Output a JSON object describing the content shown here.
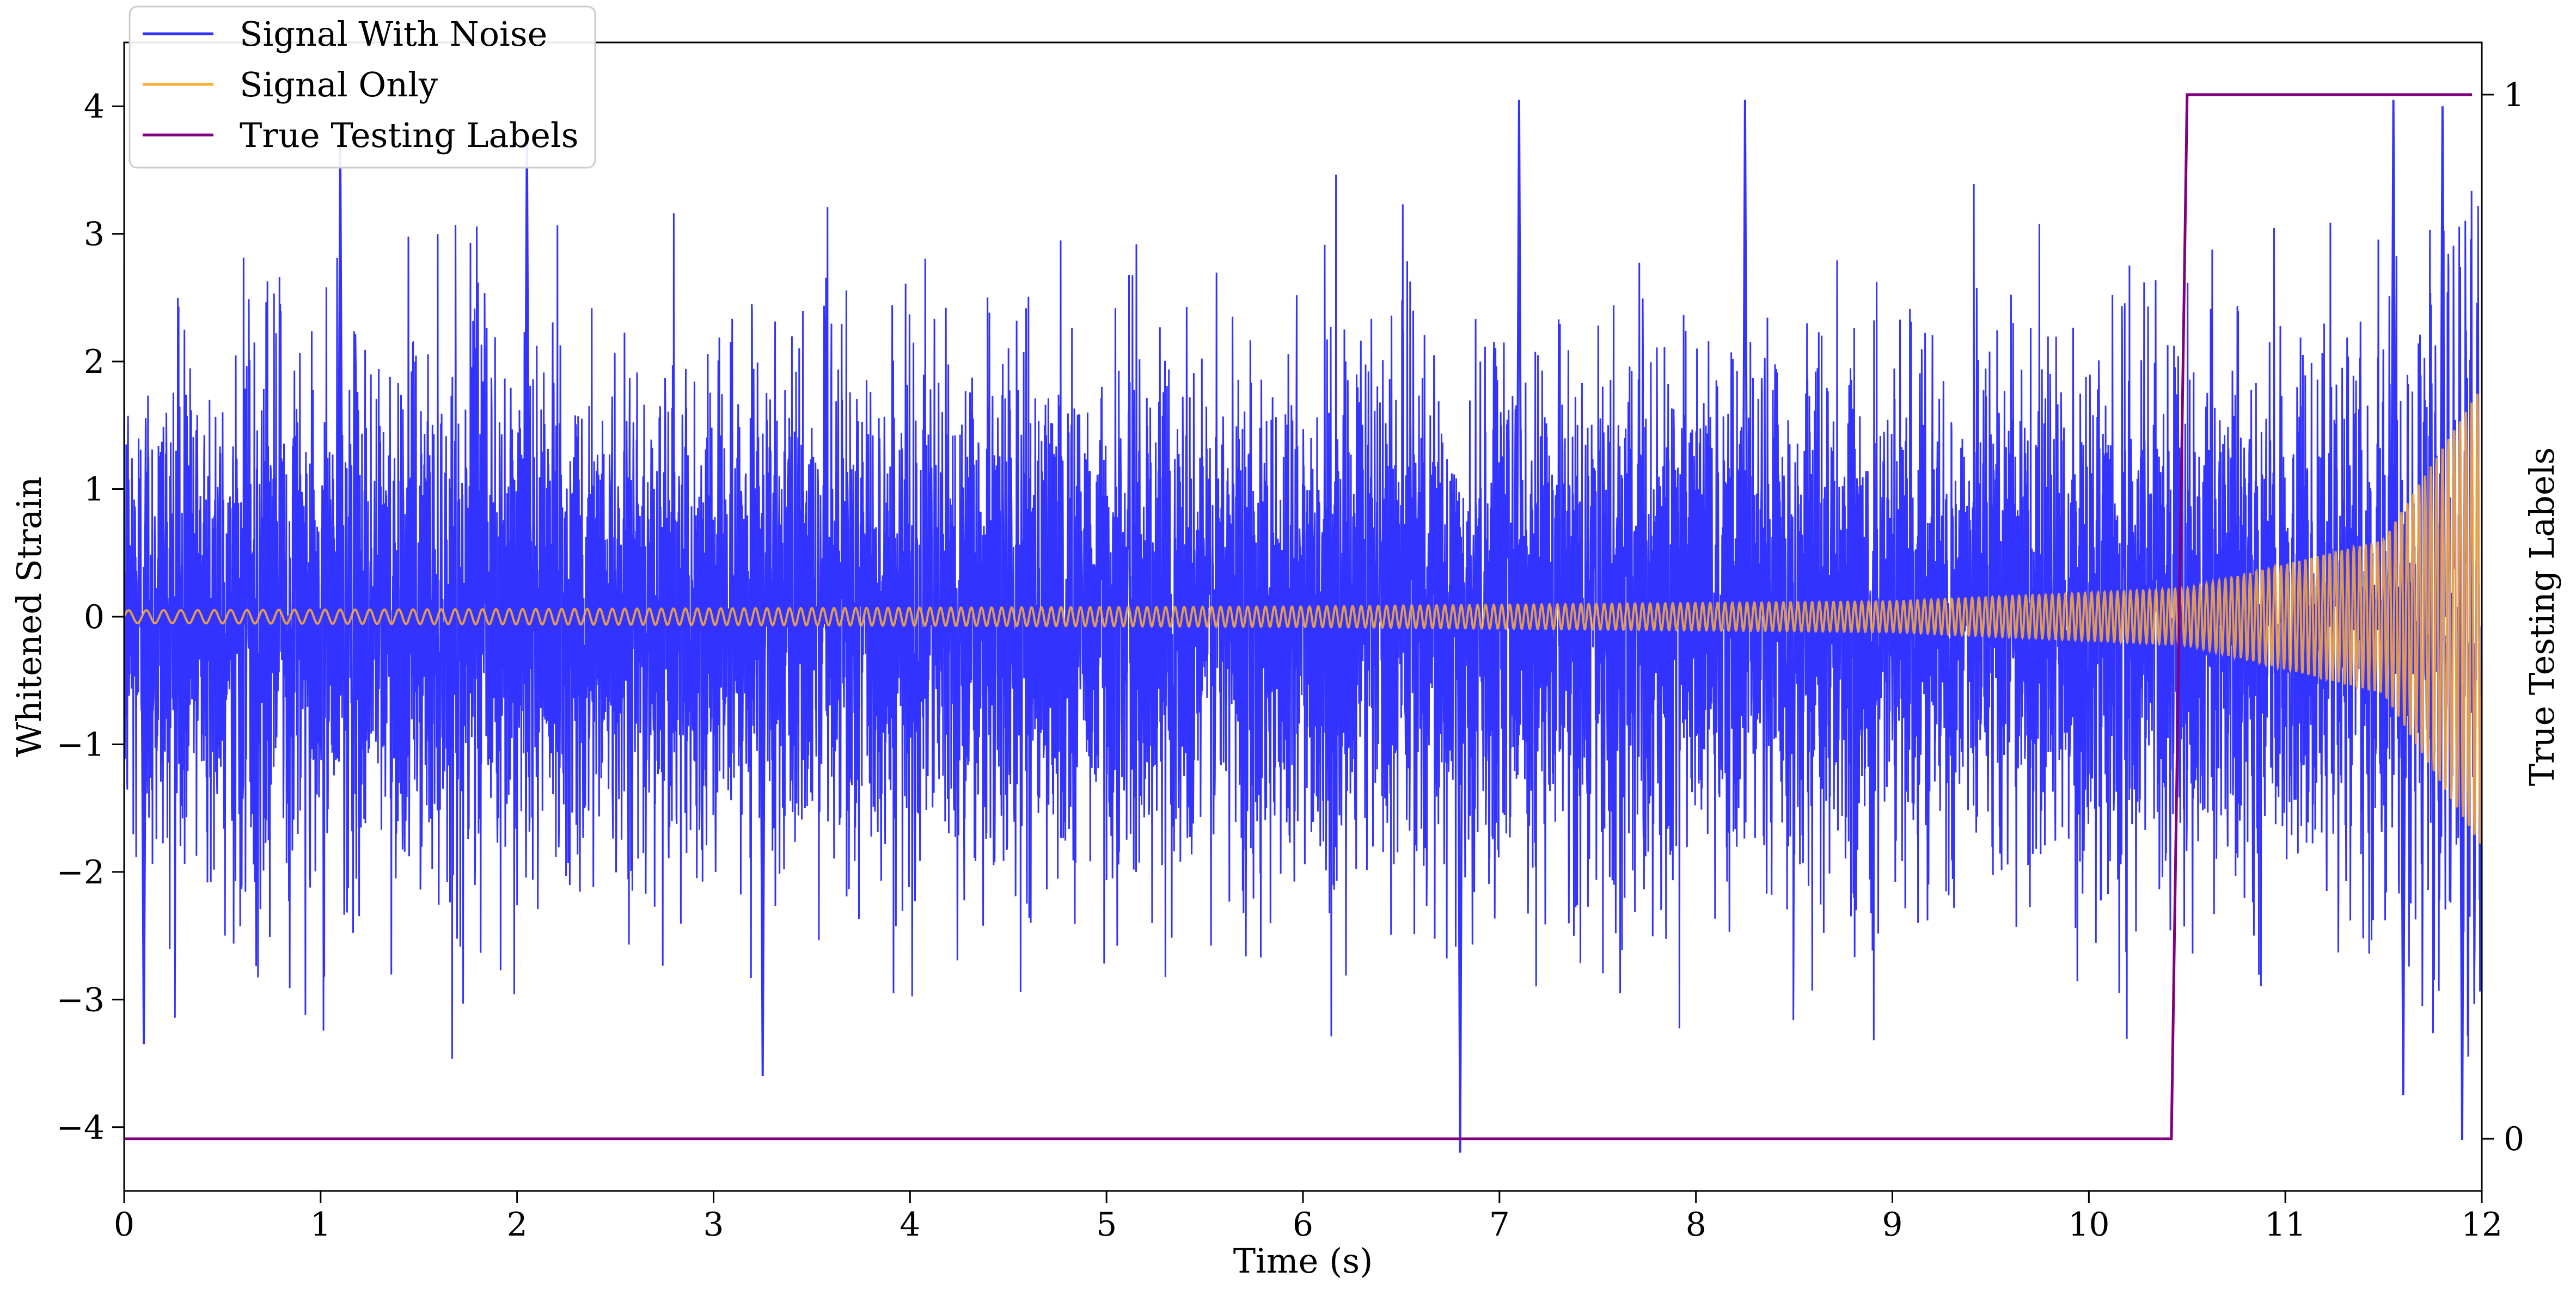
{
  "chart_data": {
    "type": "line",
    "title": "",
    "xlabel": "Time (s)",
    "ylabel": "Whitened Strain",
    "y2label": "True Testing Labels",
    "xlim": [
      0,
      12
    ],
    "ylim": [
      -4.5,
      4.5
    ],
    "y2lim": [
      -0.05,
      1.05
    ],
    "x_ticks": [
      0,
      1,
      2,
      3,
      4,
      5,
      6,
      7,
      8,
      9,
      10,
      11,
      12
    ],
    "y_ticks": [
      -4,
      -3,
      -2,
      -1,
      0,
      1,
      2,
      3,
      4
    ],
    "y_tick_labels": [
      "−4",
      "−3",
      "−2",
      "−1",
      "0",
      "1",
      "2",
      "3",
      "4"
    ],
    "y2_ticks": [
      0,
      1
    ],
    "grid": false,
    "legend_position": "top-left",
    "series": [
      {
        "name": "Signal With Noise",
        "color": "#3333ff",
        "axis": "left",
        "description_values": {
          "noise_std": 1.0,
          "typical_max": 3.5,
          "extreme_points": [
            [
              1.1,
              3.7
            ],
            [
              2.05,
              3.8
            ],
            [
              7.1,
              4.05
            ],
            [
              8.25,
              4.05
            ],
            [
              11.55,
              4.05
            ],
            [
              11.8,
              4.0
            ],
            [
              6.8,
              -4.2
            ],
            [
              3.25,
              -3.6
            ],
            [
              11.6,
              -3.75
            ],
            [
              11.9,
              -4.1
            ],
            [
              0.1,
              -3.35
            ]
          ]
        }
      },
      {
        "name": "Signal Only",
        "color": "#ffad33",
        "axis": "left",
        "description_values": {
          "amplitude_at": [
            [
              0,
              0.05
            ],
            [
              6,
              0.08
            ],
            [
              9,
              0.12
            ],
            [
              10.5,
              0.22
            ],
            [
              11.5,
              0.6
            ],
            [
              12,
              1.8
            ]
          ],
          "cycles_per_second_start": 11,
          "cycles_per_second_end": 34
        }
      },
      {
        "name": "True Testing Labels",
        "color": "#800080",
        "axis": "right",
        "x": [
          0,
          10.42,
          10.5,
          11.95
        ],
        "values": [
          0,
          0,
          1,
          1
        ]
      }
    ]
  }
}
